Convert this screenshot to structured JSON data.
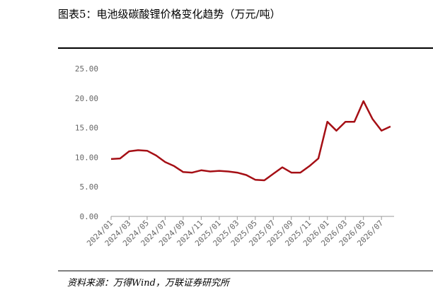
{
  "chart_data": {
    "type": "line",
    "title": "图表5：电池级碳酸锂价格变化趋势（万元/吨）",
    "source": "资料来源：万得Wind，万联证券研究所",
    "categories": [
      "2024/01",
      null,
      "2024/03",
      null,
      "2024/05",
      null,
      "2024/07",
      null,
      "2024/09",
      null,
      "2024/11",
      null,
      "2025/01",
      null,
      "2025/03",
      null,
      "2025/05",
      null,
      "2025/07",
      null,
      "2025/09",
      null,
      "2025/11",
      null,
      "2026/01",
      null,
      "2026/03",
      null,
      "2026/05",
      null,
      "2026/07",
      null
    ],
    "series": [
      {
        "name": "电池级碳酸锂价格",
        "color": "#a50f15",
        "values": [
          9.7,
          9.8,
          11.0,
          11.2,
          11.1,
          10.3,
          9.2,
          8.5,
          7.5,
          7.4,
          7.8,
          7.6,
          7.7,
          7.6,
          7.4,
          7.0,
          6.2,
          6.1,
          7.2,
          8.3,
          7.4,
          7.4,
          8.5,
          9.8,
          16.0,
          14.5,
          16.0,
          16.0,
          19.5,
          16.5,
          14.5,
          15.2
        ]
      }
    ],
    "ylim": [
      0,
      25
    ],
    "yticks": [
      {
        "value": 0,
        "label": "0.00"
      },
      {
        "value": 5,
        "label": "5.00"
      },
      {
        "value": 10,
        "label": "10.00"
      },
      {
        "value": 15,
        "label": "15.00"
      },
      {
        "value": 20,
        "label": "20.00"
      },
      {
        "value": 25,
        "label": "25.00"
      }
    ]
  }
}
